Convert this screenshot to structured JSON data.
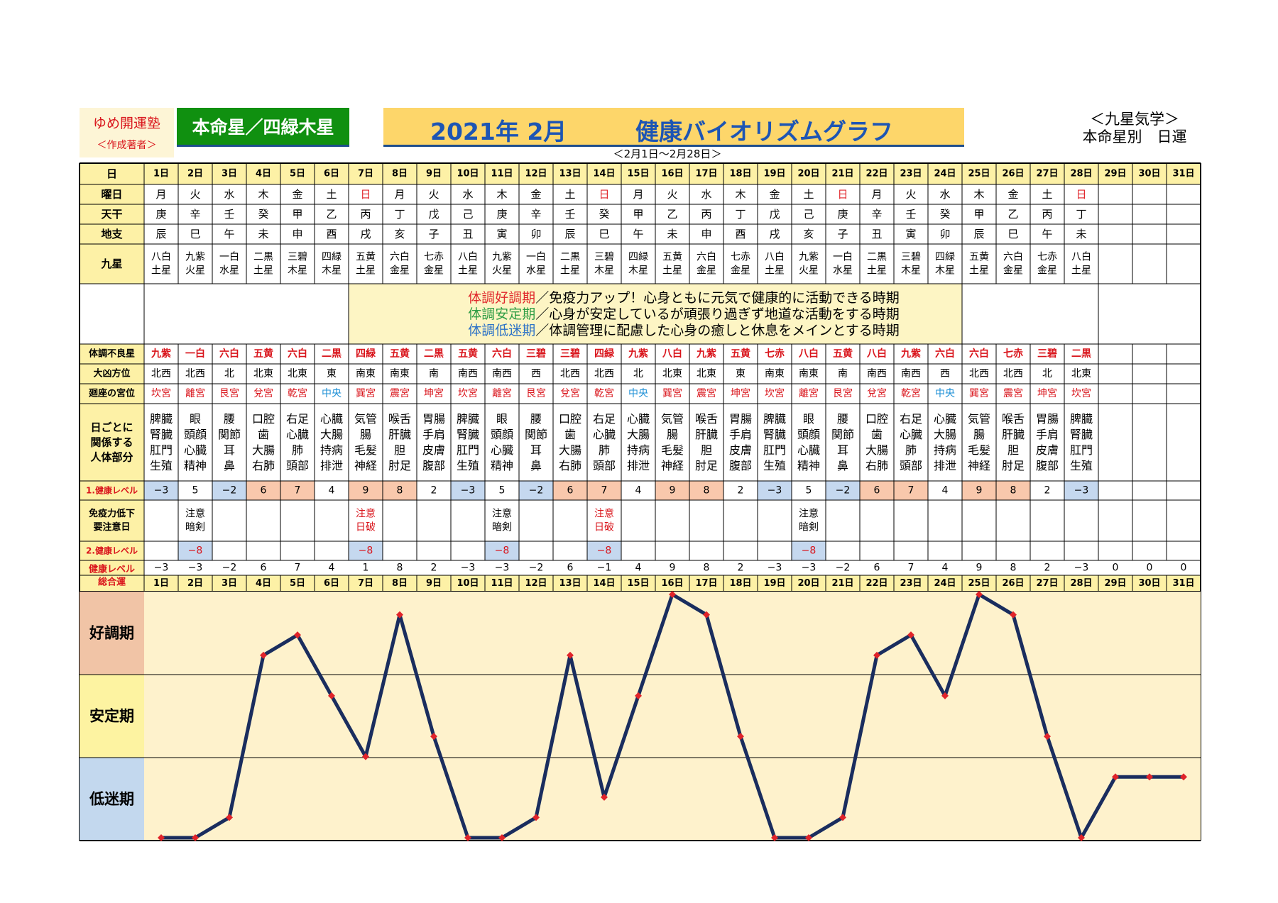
{
  "header": {
    "brand": "ゆめ開運塾",
    "brand_sub": "＜作成著者＞",
    "honmeisei": "本命星／四緑木星",
    "title_year": "2021年 2月",
    "title_main": "健康バイオリズムグラフ",
    "range": "＜2月1日～2月28日＞",
    "right_1": "＜九星気学＞",
    "right_2": "本命星別　日運"
  },
  "row_labels": {
    "day": "日",
    "weekday": "曜日",
    "tenkan": "天干",
    "chishi": "地支",
    "kyusei": "九星",
    "bad_star": "体調不良星",
    "kyo": "大凶方位",
    "palace": "廻座の宮位",
    "body": [
      "日ごとに",
      "関係する",
      "人体部分"
    ],
    "lvl1": "1.健康レベル",
    "immune": [
      "免疫力低下",
      "要注意日"
    ],
    "lvl2": "2.健康レベル",
    "total": [
      "健康レベル",
      "総合運"
    ]
  },
  "legend": [
    {
      "key": "体調好調期",
      "text": "／免疫力アップ！心身ともに元気で健康的に活動できる時期",
      "color": "#e0282c"
    },
    {
      "key": "体調安定期",
      "text": "／心身が安定しているが頑張り過ぎず地道な活動をする時期",
      "color": "#2e9d45"
    },
    {
      "key": "体調低迷期",
      "text": "／体調管理に配慮した心身の癒しと休息をメインとする時期",
      "color": "#2b71c7"
    }
  ],
  "days": [
    "1日",
    "2日",
    "3日",
    "4日",
    "5日",
    "6日",
    "7日",
    "8日",
    "9日",
    "10日",
    "11日",
    "12日",
    "13日",
    "14日",
    "15日",
    "16日",
    "17日",
    "18日",
    "19日",
    "20日",
    "21日",
    "22日",
    "23日",
    "24日",
    "25日",
    "26日",
    "27日",
    "28日",
    "29日",
    "30日",
    "31日"
  ],
  "weekdays": [
    "月",
    "火",
    "水",
    "木",
    "金",
    "土",
    "日",
    "月",
    "火",
    "水",
    "木",
    "金",
    "土",
    "日",
    "月",
    "火",
    "水",
    "木",
    "金",
    "土",
    "日",
    "月",
    "火",
    "水",
    "木",
    "金",
    "土",
    "日",
    "",
    "",
    ""
  ],
  "tenkan": [
    "庚",
    "辛",
    "壬",
    "癸",
    "甲",
    "乙",
    "丙",
    "丁",
    "戊",
    "己",
    "庚",
    "辛",
    "壬",
    "癸",
    "甲",
    "乙",
    "丙",
    "丁",
    "戊",
    "己",
    "庚",
    "辛",
    "壬",
    "癸",
    "甲",
    "乙",
    "丙",
    "丁",
    "",
    "",
    ""
  ],
  "chishi": [
    "辰",
    "巳",
    "午",
    "未",
    "申",
    "酉",
    "戌",
    "亥",
    "子",
    "丑",
    "寅",
    "卯",
    "辰",
    "巳",
    "午",
    "未",
    "申",
    "酉",
    "戌",
    "亥",
    "子",
    "丑",
    "寅",
    "卯",
    "辰",
    "巳",
    "午",
    "未",
    "",
    "",
    ""
  ],
  "kyusei": [
    [
      "八白",
      "土星"
    ],
    [
      "九紫",
      "火星"
    ],
    [
      "一白",
      "水星"
    ],
    [
      "二黒",
      "土星"
    ],
    [
      "三碧",
      "木星"
    ],
    [
      "四緑",
      "木星"
    ],
    [
      "五黄",
      "土星"
    ],
    [
      "六白",
      "金星"
    ],
    [
      "七赤",
      "金星"
    ],
    [
      "八白",
      "土星"
    ],
    [
      "九紫",
      "火星"
    ],
    [
      "一白",
      "水星"
    ],
    [
      "二黒",
      "土星"
    ],
    [
      "三碧",
      "木星"
    ],
    [
      "四緑",
      "木星"
    ],
    [
      "五黄",
      "土星"
    ],
    [
      "六白",
      "金星"
    ],
    [
      "七赤",
      "金星"
    ],
    [
      "八白",
      "土星"
    ],
    [
      "九紫",
      "火星"
    ],
    [
      "一白",
      "水星"
    ],
    [
      "二黒",
      "土星"
    ],
    [
      "三碧",
      "木星"
    ],
    [
      "四緑",
      "木星"
    ],
    [
      "五黄",
      "土星"
    ],
    [
      "六白",
      "金星"
    ],
    [
      "七赤",
      "金星"
    ],
    [
      "八白",
      "土星"
    ],
    [],
    [],
    []
  ],
  "bad_star": [
    "九紫",
    "一白",
    "六白",
    "五黄",
    "六白",
    "二黒",
    "四緑",
    "五黄",
    "二黒",
    "五黄",
    "六白",
    "三碧",
    "三碧",
    "四緑",
    "九紫",
    "八白",
    "九紫",
    "五黄",
    "七赤",
    "八白",
    "五黄",
    "八白",
    "九紫",
    "六白",
    "六白",
    "七赤",
    "三碧",
    "二黒",
    "",
    "",
    ""
  ],
  "kyo_dir": [
    "北西",
    "北西",
    "北",
    "北東",
    "北東",
    "東",
    "南東",
    "南東",
    "南",
    "南西",
    "南西",
    "西",
    "北西",
    "北西",
    "北",
    "北東",
    "北東",
    "東",
    "南東",
    "南東",
    "南",
    "南西",
    "南西",
    "西",
    "北西",
    "北西",
    "北",
    "北東",
    "",
    "",
    ""
  ],
  "palace": [
    "坎宮",
    "離宮",
    "艮宮",
    "兌宮",
    "乾宮",
    "中央",
    "巽宮",
    "震宮",
    "坤宮",
    "坎宮",
    "離宮",
    "艮宮",
    "兌宮",
    "乾宮",
    "中央",
    "巽宮",
    "震宮",
    "坤宮",
    "坎宮",
    "離宮",
    "艮宮",
    "兌宮",
    "乾宮",
    "中央",
    "巽宮",
    "震宮",
    "坤宮",
    "坎宮",
    "",
    "",
    ""
  ],
  "body_parts": [
    [
      "脾臓",
      "腎臓",
      "肛門",
      "生殖"
    ],
    [
      "眼",
      "頭顔",
      "心臓",
      "精神"
    ],
    [
      "腰",
      "関節",
      "耳",
      "鼻"
    ],
    [
      "口腔",
      "歯",
      "大腸",
      "右肺"
    ],
    [
      "右足",
      "心臓",
      "肺",
      "頭部"
    ],
    [
      "心臓",
      "大腸",
      "持病",
      "排泄"
    ],
    [
      "気管",
      "腸",
      "毛髪",
      "神経"
    ],
    [
      "喉舌",
      "肝臓",
      "胆",
      "肘足"
    ],
    [
      "胃腸",
      "手肩",
      "皮膚",
      "腹部"
    ],
    [
      "脾臓",
      "腎臓",
      "肛門",
      "生殖"
    ],
    [
      "眼",
      "頭顔",
      "心臓",
      "精神"
    ],
    [
      "腰",
      "関節",
      "耳",
      "鼻"
    ],
    [
      "口腔",
      "歯",
      "大腸",
      "右肺"
    ],
    [
      "右足",
      "心臓",
      "肺",
      "頭部"
    ],
    [
      "心臓",
      "大腸",
      "持病",
      "排泄"
    ],
    [
      "気管",
      "腸",
      "毛髪",
      "神経"
    ],
    [
      "喉舌",
      "肝臓",
      "胆",
      "肘足"
    ],
    [
      "胃腸",
      "手肩",
      "皮膚",
      "腹部"
    ],
    [
      "脾臓",
      "腎臓",
      "肛門",
      "生殖"
    ],
    [
      "眼",
      "頭顔",
      "心臓",
      "精神"
    ],
    [
      "腰",
      "関節",
      "耳",
      "鼻"
    ],
    [
      "口腔",
      "歯",
      "大腸",
      "右肺"
    ],
    [
      "右足",
      "心臓",
      "肺",
      "頭部"
    ],
    [
      "心臓",
      "大腸",
      "持病",
      "排泄"
    ],
    [
      "気管",
      "腸",
      "毛髪",
      "神経"
    ],
    [
      "喉舌",
      "肝臓",
      "胆",
      "肘足"
    ],
    [
      "胃腸",
      "手肩",
      "皮膚",
      "腹部"
    ],
    [
      "脾臓",
      "腎臓",
      "肛門",
      "生殖"
    ],
    [],
    [],
    []
  ],
  "level1": [
    "−3",
    "5",
    "−2",
    "6",
    "7",
    "4",
    "9",
    "8",
    "2",
    "−3",
    "5",
    "−2",
    "6",
    "7",
    "4",
    "9",
    "8",
    "2",
    "−3",
    "5",
    "−2",
    "6",
    "7",
    "4",
    "9",
    "8",
    "2",
    "−3",
    "",
    "",
    ""
  ],
  "immune": [
    [],
    [
      "注意",
      "暗剣"
    ],
    [],
    [],
    [],
    [],
    [
      "注意",
      "日破"
    ],
    [],
    [],
    [],
    [
      "注意",
      "暗剣"
    ],
    [],
    [],
    [
      "注意",
      "日破"
    ],
    [],
    [],
    [],
    [],
    [],
    [
      "注意",
      "暗剣"
    ],
    [],
    [],
    [],
    [],
    [],
    [],
    [],
    [],
    [],
    [],
    []
  ],
  "level2": [
    "",
    "−8",
    "",
    "",
    "",
    "",
    "−8",
    "",
    "",
    "",
    "−8",
    "",
    "",
    "−8",
    "",
    "",
    "",
    "",
    "",
    "−8",
    "",
    "",
    "",
    "",
    "",
    "",
    "",
    "",
    "",
    "",
    ""
  ],
  "total": [
    "−3",
    "−3",
    "−2",
    "6",
    "7",
    "4",
    "1",
    "8",
    "2",
    "−3",
    "−3",
    "−2",
    "6",
    "−1",
    "4",
    "9",
    "8",
    "2",
    "−3",
    "−3",
    "−2",
    "6",
    "7",
    "4",
    "9",
    "8",
    "2",
    "−3",
    "0",
    "0",
    "0"
  ],
  "colors": {
    "header_yellow": "#fdf1a6",
    "good_pink": "#f9c8ac",
    "low_blue": "#c5d8ef",
    "weekday_red": "#e0242a",
    "line": "#1a2d5e",
    "marker": "#e0242a",
    "chart_bg": "#fef2cc",
    "chart_good": "#f1c4a6",
    "chart_stable": "#fdf3a1",
    "chart_low": "#c3d8ee",
    "palace_center": "#1c8fd6"
  },
  "chart_data": {
    "type": "line",
    "title": "健康バイオリズムグラフ",
    "x": [
      "1日",
      "2日",
      "3日",
      "4日",
      "5日",
      "6日",
      "7日",
      "8日",
      "9日",
      "10日",
      "11日",
      "12日",
      "13日",
      "14日",
      "15日",
      "16日",
      "17日",
      "18日",
      "19日",
      "20日",
      "21日",
      "22日",
      "23日",
      "24日",
      "25日",
      "26日",
      "27日",
      "28日",
      "29日",
      "30日",
      "31日"
    ],
    "series": [
      {
        "values": [
          -3,
          -3,
          -2,
          6,
          7,
          4,
          1,
          8,
          2,
          -3,
          -3,
          -2,
          6,
          -1,
          4,
          9,
          8,
          2,
          -3,
          -3,
          -2,
          6,
          7,
          4,
          9,
          8,
          2,
          -3,
          0,
          0,
          0
        ]
      }
    ],
    "ylim": [
      -3,
      9
    ],
    "bands": [
      "好調期",
      "安定期",
      "低迷期"
    ],
    "grid": false
  }
}
